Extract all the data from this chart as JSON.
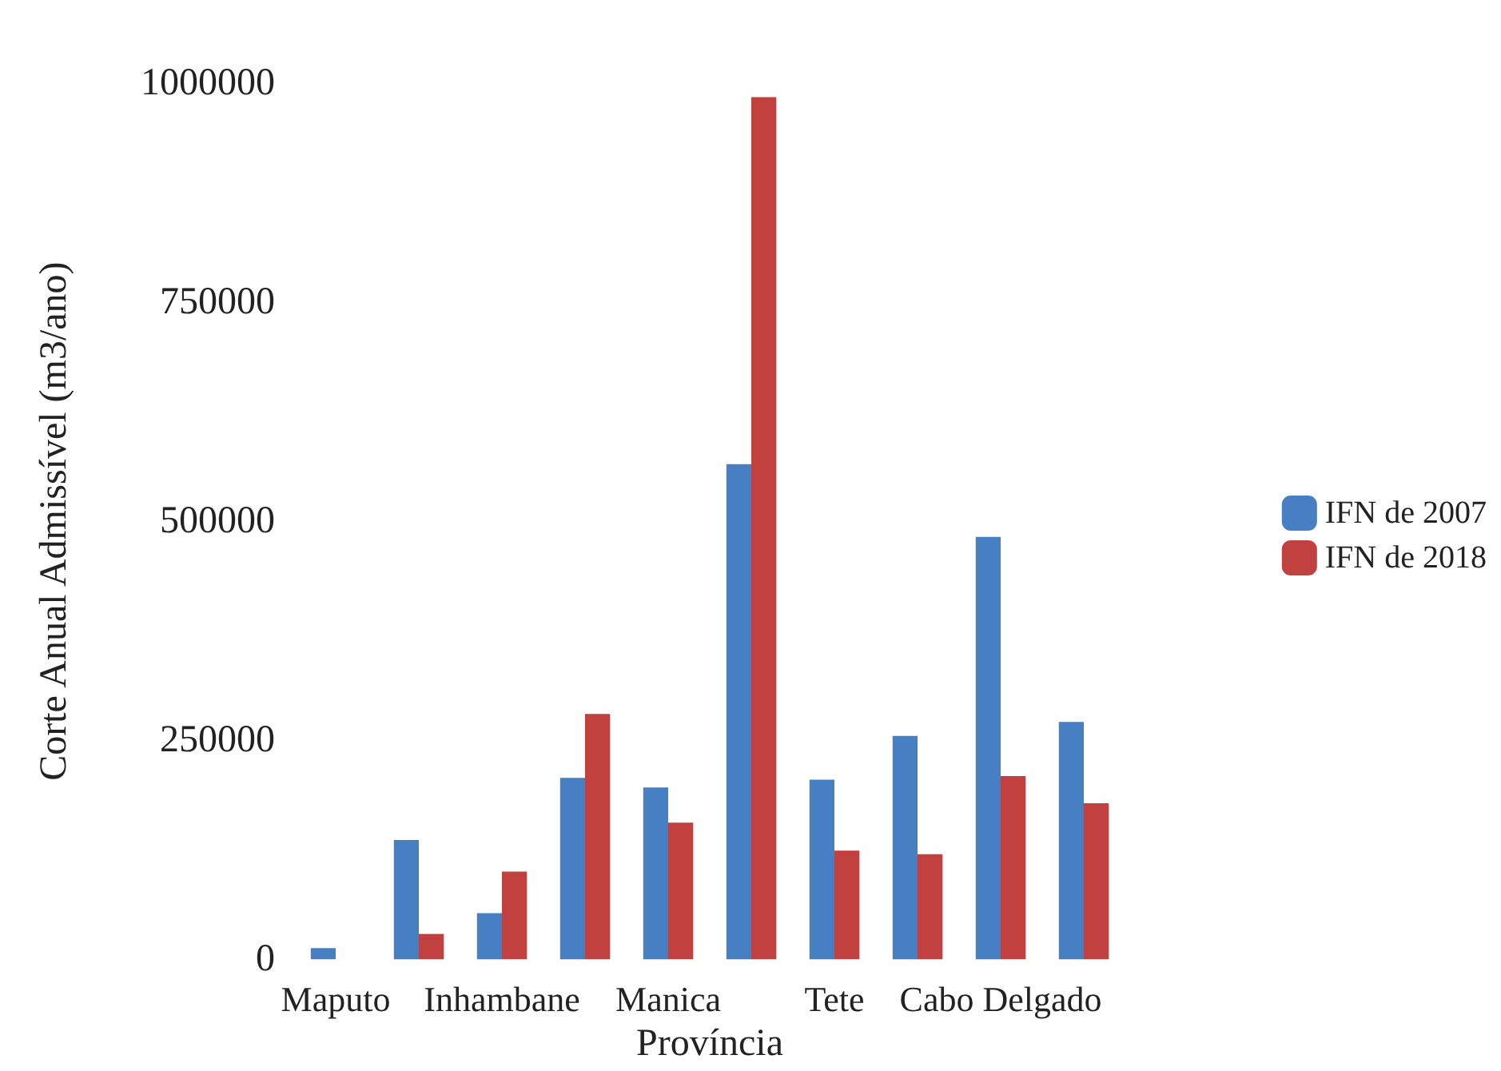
{
  "chart_data": {
    "type": "bar",
    "xlabel": "Província",
    "ylabel": "Corte Anual Admissível (m3/ano)",
    "categories": [
      "Maputo",
      null,
      "Inhambane",
      null,
      "Manica",
      null,
      "Tete",
      null,
      "Cabo Delgado",
      null
    ],
    "series": [
      {
        "name": "IFN de 2007",
        "color": "#4680c2",
        "values": [
          12700,
          136000,
          52700,
          207000,
          196000,
          565000,
          205000,
          255000,
          482000,
          271000
        ]
      },
      {
        "name": "IFN de 2018",
        "color": "#c0413f",
        "values": [
          null,
          29000,
          100000,
          280000,
          156000,
          984000,
          124000,
          120000,
          209000,
          178000
        ]
      }
    ],
    "ylim": [
      0,
      1000000
    ],
    "yticks": [
      0,
      250000,
      500000,
      750000,
      1000000
    ],
    "grid": false,
    "legend": "right"
  }
}
